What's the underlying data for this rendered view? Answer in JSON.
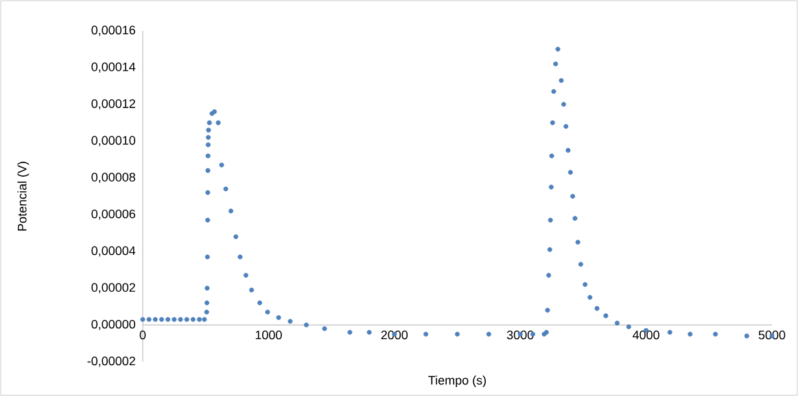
{
  "chart_data": {
    "type": "scatter",
    "xlabel": "Tiempo (s)",
    "ylabel": "Potencial (V)",
    "color": "#4f81bd",
    "marker": "circle",
    "xlim": [
      0,
      5000
    ],
    "xticks": [
      0,
      1000,
      2000,
      3000,
      4000,
      5000
    ],
    "ylim": [
      -2e-05,
      0.00016
    ],
    "yticks": [
      {
        "value": -2e-05,
        "label": "-0,00002"
      },
      {
        "value": 0,
        "label": "0,00000"
      },
      {
        "value": 2e-05,
        "label": "0,00002"
      },
      {
        "value": 4e-05,
        "label": "0,00004"
      },
      {
        "value": 6e-05,
        "label": "0,00006"
      },
      {
        "value": 8e-05,
        "label": "0,00008"
      },
      {
        "value": 0.0001,
        "label": "0,00010"
      },
      {
        "value": 0.00012,
        "label": "0,00012"
      },
      {
        "value": 0.00014,
        "label": "0,00014"
      },
      {
        "value": 0.00016,
        "label": "0,00016"
      }
    ],
    "x": [
      0,
      50,
      100,
      150,
      200,
      250,
      300,
      350,
      400,
      450,
      490,
      508,
      510,
      512,
      514,
      516,
      517,
      518,
      519,
      520,
      521,
      523,
      530,
      550,
      570,
      600,
      627,
      660,
      701,
      740,
      774,
      820,
      865,
      930,
      992,
      1080,
      1172,
      1300,
      1445,
      1646,
      1800,
      2000,
      2250,
      2500,
      2750,
      3000,
      3100,
      3190,
      3208,
      3217,
      3226,
      3235,
      3240,
      3246,
      3250,
      3257,
      3266,
      3281,
      3299,
      3326,
      3345,
      3363,
      3380,
      3399,
      3417,
      3435,
      3458,
      3481,
      3515,
      3554,
      3610,
      3680,
      3770,
      3862,
      4000,
      4189,
      4350,
      4551,
      4800,
      5000
    ],
    "values": [
      3e-06,
      3e-06,
      3e-06,
      3e-06,
      3e-06,
      3e-06,
      3e-06,
      3e-06,
      3e-06,
      3e-06,
      3e-06,
      7e-06,
      1.2e-05,
      2e-05,
      3.7e-05,
      5.7e-05,
      7.2e-05,
      8.4e-05,
      9.2e-05,
      9.8e-05,
      0.000102,
      0.000106,
      0.00011,
      0.000115,
      0.000116,
      0.00011,
      8.7e-05,
      7.4e-05,
      6.2e-05,
      4.8e-05,
      3.7e-05,
      2.7e-05,
      1.9e-05,
      1.2e-05,
      7e-06,
      4e-06,
      2e-06,
      0,
      -2e-06,
      -4e-06,
      -4e-06,
      -5e-06,
      -5e-06,
      -5e-06,
      -5e-06,
      -5e-06,
      -5e-06,
      -5e-06,
      -4e-06,
      8e-06,
      2.7e-05,
      4.1e-05,
      5.7e-05,
      7.5e-05,
      9.2e-05,
      0.00011,
      0.000127,
      0.000142,
      0.00015,
      0.000133,
      0.00012,
      0.000108,
      9.5e-05,
      8.3e-05,
      7e-05,
      5.8e-05,
      4.5e-05,
      3.3e-05,
      2.2e-05,
      1.5e-05,
      9e-06,
      5e-06,
      1e-06,
      -1e-06,
      -3e-06,
      -4e-06,
      -5e-06,
      -5e-06,
      -6e-06,
      -6e-06
    ]
  }
}
